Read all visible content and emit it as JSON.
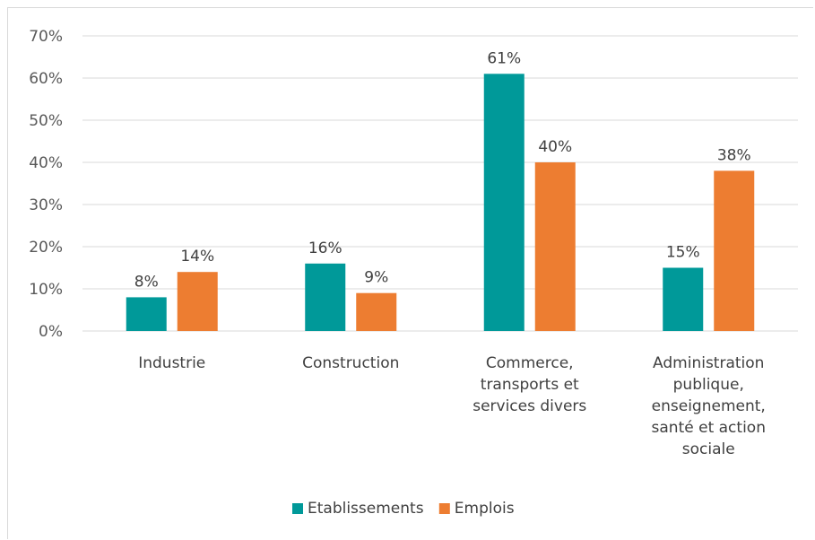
{
  "chart_data": {
    "type": "bar",
    "categories": [
      [
        "Industrie"
      ],
      [
        "Construction"
      ],
      [
        "Commerce,",
        "transports et",
        "services divers"
      ],
      [
        "Administration",
        "publique,",
        "enseignement,",
        "santé et action",
        "sociale"
      ]
    ],
    "series": [
      {
        "name": "Etablissements",
        "values": [
          8,
          16,
          61,
          15
        ],
        "labels": [
          "8%",
          "16%",
          "61%",
          "15%"
        ],
        "color": "#009999"
      },
      {
        "name": "Emplois",
        "values": [
          14,
          9,
          40,
          38
        ],
        "labels": [
          "14%",
          "9%",
          "40%",
          "38%"
        ],
        "color": "#ED7D31"
      }
    ],
    "y_ticks": [
      "0%",
      "10%",
      "20%",
      "30%",
      "40%",
      "50%",
      "60%",
      "70%"
    ],
    "ylim": [
      0,
      70
    ],
    "grid": true,
    "legend": "bottom",
    "title": "",
    "xlabel": "",
    "ylabel": ""
  }
}
